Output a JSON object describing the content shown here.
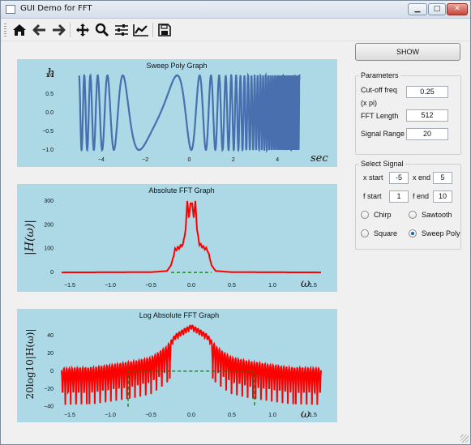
{
  "window": {
    "title": "GUI Demo for FFT",
    "controls": {
      "minimize": "▁",
      "maximize": "□",
      "close": "✕"
    }
  },
  "toolbar": {
    "icons": [
      "home-icon",
      "back-arrow-icon",
      "forward-arrow-icon",
      "pan-icon",
      "zoom-icon",
      "configure-subplots-icon",
      "edit-axis-icon",
      "save-icon"
    ]
  },
  "show_button": "SHOW",
  "parameters": {
    "title": "Parameters",
    "cutoff_label": "Cut-off freq",
    "cutoff_unit": "(x  pi)",
    "cutoff_value": "0.25",
    "fft_length_label": "FFT Length",
    "fft_length_value": "512",
    "signal_range_label": "Signal Range",
    "signal_range_value": "20"
  },
  "select_signal": {
    "title": "Select Signal",
    "x_start_label": "x start",
    "x_start_value": "-5",
    "x_end_label": "x end",
    "x_end_value": "5",
    "f_start_label": "f start",
    "f_start_value": "1",
    "f_end_label": "f end",
    "f_end_value": "10",
    "options": [
      {
        "label": "Chirp",
        "selected": false
      },
      {
        "label": "Sawtooth",
        "selected": false
      },
      {
        "label": "Square",
        "selected": false
      },
      {
        "label": "Sweep Poly",
        "selected": true
      }
    ]
  },
  "chart_data": [
    {
      "type": "line",
      "title": "Sweep Poly Graph",
      "ylabel": "h",
      "xlabel": "sec",
      "xlim": [
        -5.5,
        5.5
      ],
      "ylim": [
        -1.0,
        1.0
      ],
      "x_range": [
        -5,
        5
      ],
      "xticks": [
        "−4",
        "−2",
        "0",
        "2",
        "4"
      ],
      "yticks": [
        "−1.0",
        "−0.5",
        "0.0",
        "0.5",
        "1.0"
      ],
      "color": "#4a6faf",
      "description": "sweep-poly signal, amplitude 1, frequency lowest near x=-1.5, very high at the left edge and rising toward the right"
    },
    {
      "type": "line",
      "title": "Absolute FFT Graph",
      "ylabel": "|H(ω)|",
      "xlabel": "ω",
      "xlim": [
        -1.6,
        1.6
      ],
      "ylim": [
        -10,
        310
      ],
      "xticks": [
        "−1.5",
        "−1.0",
        "−0.5",
        "0.0",
        "0.5",
        "1.0",
        "1.5"
      ],
      "yticks": [
        "0",
        "100",
        "200",
        "300"
      ],
      "series": [
        {
          "color": "#ff0000",
          "points": [
            [
              -1.6,
              0
            ],
            [
              -0.5,
              1
            ],
            [
              -0.3,
              6
            ],
            [
              -0.25,
              30
            ],
            [
              -0.2,
              95
            ],
            [
              -0.15,
              105
            ],
            [
              -0.1,
              120
            ],
            [
              -0.07,
              180
            ],
            [
              -0.05,
              300
            ],
            [
              -0.03,
              230
            ],
            [
              -0.01,
              290
            ],
            [
              0.01,
              290
            ],
            [
              0.03,
              230
            ],
            [
              0.05,
              300
            ],
            [
              0.07,
              180
            ],
            [
              0.1,
              120
            ],
            [
              0.15,
              105
            ],
            [
              0.2,
              95
            ],
            [
              0.25,
              30
            ],
            [
              0.3,
              6
            ],
            [
              0.5,
              1
            ],
            [
              1.6,
              0
            ]
          ]
        },
        {
          "color": "#008000",
          "dashed": true,
          "points": [
            [
              -0.25,
              0
            ],
            [
              0.25,
              0
            ]
          ]
        }
      ]
    },
    {
      "type": "line",
      "title": "Log Absolute FFT Graph",
      "ylabel": "20log10|H(ω)|",
      "xlabel": "ω",
      "xlim": [
        -1.6,
        1.6
      ],
      "ylim": [
        -43,
        52
      ],
      "xticks": [
        "−1.5",
        "−1.0",
        "−0.5",
        "0.0",
        "0.5",
        "1.0",
        "1.5"
      ],
      "yticks": [
        "−40",
        "−20",
        "0",
        "20",
        "40"
      ],
      "series": [
        {
          "color": "#ff0000",
          "envelope": [
            [
              -1.6,
              0
            ],
            [
              -1.2,
              1
            ],
            [
              -0.9,
              5
            ],
            [
              -0.7,
              8
            ],
            [
              -0.5,
              12
            ],
            [
              -0.4,
              18
            ],
            [
              -0.3,
              25
            ],
            [
              -0.2,
              38
            ],
            [
              -0.1,
              44
            ],
            [
              -0.02,
              48
            ],
            [
              0,
              50
            ],
            [
              0.02,
              48
            ],
            [
              0.1,
              44
            ],
            [
              0.2,
              38
            ],
            [
              0.3,
              25
            ],
            [
              0.4,
              18
            ],
            [
              0.5,
              12
            ],
            [
              0.7,
              8
            ],
            [
              0.9,
              5
            ],
            [
              1.2,
              1
            ],
            [
              1.6,
              0
            ]
          ]
        },
        {
          "color": "#008000",
          "dashed": true,
          "points": [
            [
              -0.78,
              -40
            ],
            [
              -0.78,
              0
            ],
            [
              0.78,
              0
            ],
            [
              0.78,
              -40
            ]
          ]
        }
      ]
    }
  ]
}
